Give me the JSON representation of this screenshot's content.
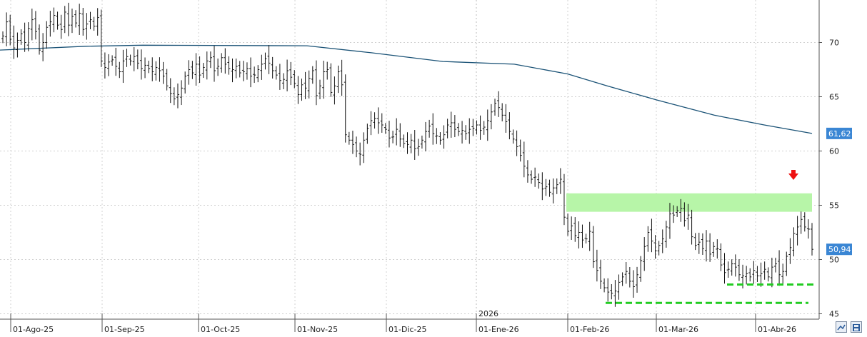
{
  "chart_data": {
    "type": "ohlc",
    "x_tick_labels": [
      "01-Ago-25",
      "01-Sep-25",
      "01-Oct-25",
      "01-Nov-25",
      "01-Dic-25",
      "01-Ene-26",
      "01-Feb-26",
      "01-Mar-26",
      "01-Abr-26"
    ],
    "year_marker": "2026",
    "y_ticks": [
      45,
      50,
      55,
      60,
      65,
      70
    ],
    "ylim": [
      44.2,
      74.5
    ],
    "grid": true,
    "closes": [
      70.6,
      71.9,
      70.3,
      69.5,
      70.2,
      70.8,
      70.0,
      71.3,
      72.1,
      71.0,
      69.3,
      70.0,
      71.4,
      71.9,
      72.5,
      71.6,
      71.2,
      72.8,
      71.6,
      72.4,
      71.8,
      72.7,
      71.2,
      71.7,
      72.1,
      71.5,
      72.3,
      68.3,
      67.7,
      68.2,
      68.4,
      67.8,
      67.3,
      68.3,
      68.7,
      68.3,
      68.7,
      68.1,
      67.6,
      67.9,
      67.6,
      67.3,
      67.7,
      67.4,
      66.9,
      66.0,
      65.3,
      64.8,
      65.2,
      65.8,
      66.9,
      67.5,
      67.2,
      68.0,
      67.0,
      67.7,
      68.3,
      68.6,
      67.4,
      67.8,
      68.6,
      68.0,
      67.6,
      67.5,
      67.8,
      67.2,
      67.3,
      67.6,
      66.9,
      67.0,
      67.5,
      68.0,
      68.5,
      68.1,
      67.4,
      67.0,
      66.5,
      66.6,
      67.4,
      66.8,
      66.2,
      65.2,
      66.1,
      65.8,
      66.7,
      67.4,
      65.1,
      66.0,
      67.3,
      67.5,
      65.4,
      66.0,
      67.3,
      66.1,
      61.5,
      61.0,
      60.6,
      60.0,
      59.7,
      61.0,
      62.1,
      62.8,
      63.0,
      62.6,
      62.4,
      62.0,
      61.2,
      61.3,
      62.0,
      61.1,
      60.7,
      60.6,
      61.0,
      60.2,
      60.4,
      61.0,
      61.8,
      62.3,
      61.6,
      61.4,
      61.0,
      61.5,
      62.4,
      62.6,
      62.0,
      61.8,
      61.9,
      61.6,
      62.0,
      62.1,
      62.4,
      61.9,
      62.2,
      62.8,
      63.6,
      64.4,
      64.0,
      63.3,
      62.7,
      61.8,
      61.1,
      60.4,
      59.6,
      58.6,
      57.8,
      57.4,
      57.6,
      57.1,
      56.5,
      56.7,
      56.2,
      56.6,
      56.9,
      57.4,
      53.9,
      52.6,
      53.1,
      52.2,
      52.5,
      51.8,
      51.9,
      52.6,
      49.8,
      49.0,
      48.0,
      47.4,
      47.0,
      46.9,
      47.1,
      47.9,
      48.4,
      48.9,
      48.0,
      47.5,
      48.6,
      49.9,
      51.2,
      52.5,
      51.7,
      50.8,
      51.3,
      51.9,
      53.0,
      54.2,
      54.1,
      54.5,
      54.7,
      53.6,
      54.1,
      52.1,
      51.3,
      51.6,
      51.0,
      51.7,
      50.5,
      51.2,
      51.0,
      49.5,
      48.8,
      49.1,
      49.6,
      49.3,
      48.6,
      48.5,
      48.7,
      48.4,
      49.0,
      48.5,
      48.7,
      49.1,
      48.4,
      49.3,
      49.6,
      48.6,
      48.9,
      50.3,
      51.1,
      52.4,
      53.0,
      53.7,
      53.0,
      52.8,
      50.94
    ],
    "moving_average": {
      "start": 69.3,
      "peak": 69.75,
      "feb_start": 67.1,
      "end": 61.62
    },
    "last_price_label": "50,94",
    "ma_value_label": "61,62",
    "resistance_zone": [
      54.4,
      56.1
    ],
    "support_levels": [
      47.7,
      46.0
    ],
    "signal_arrow": "down",
    "colors": {
      "bars": "#111111",
      "ma_line": "#1a5276",
      "zone": "#b7f5a8",
      "support": "#22cc22",
      "arrow": "#ee1111",
      "label_box": "#3a86d4"
    }
  },
  "ui": {
    "fullscreen_icon": "fullscreen-icon",
    "save_icon": "save-icon"
  }
}
